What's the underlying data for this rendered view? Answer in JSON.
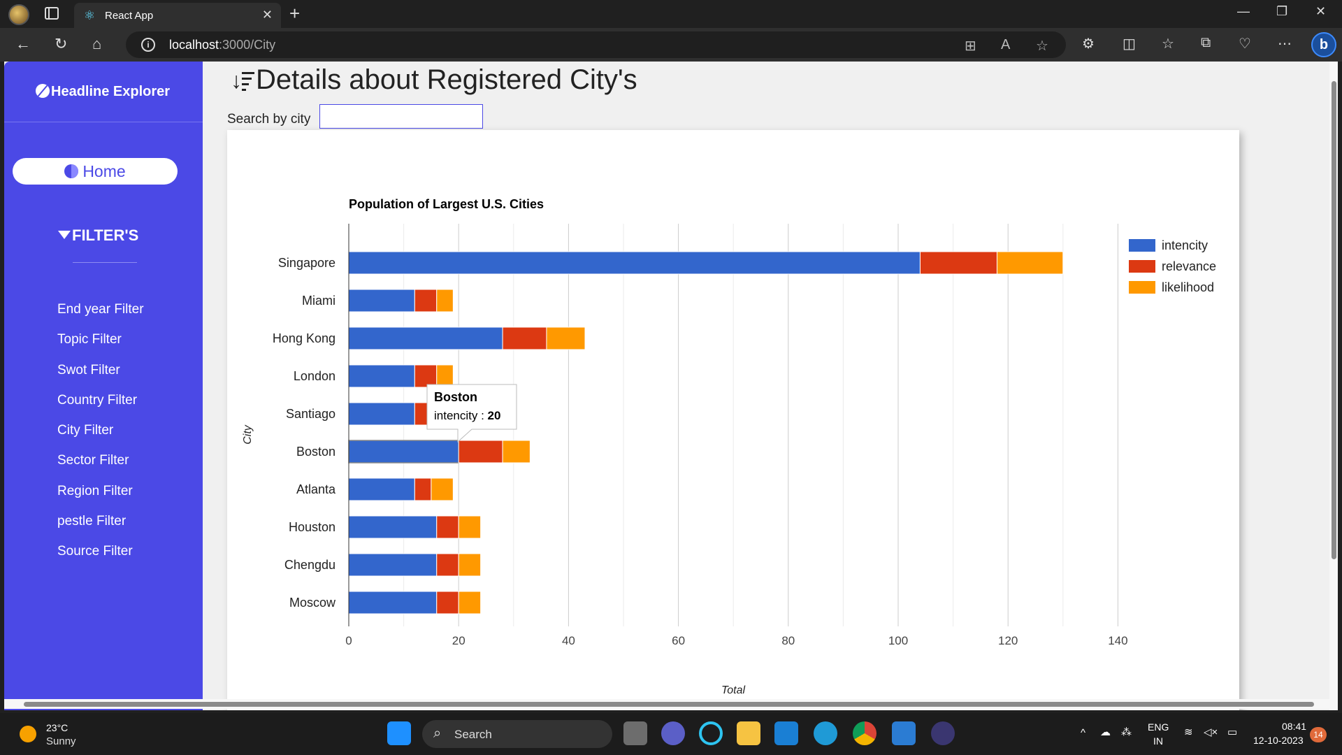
{
  "browser": {
    "tab_title": "React App",
    "url_host": "localhost",
    "url_path": ":3000/City"
  },
  "sidebar": {
    "brand": "Headline Explorer",
    "home_label": "Home",
    "filters_title": "FILTER'S",
    "items": [
      {
        "label": "End year Filter"
      },
      {
        "label": "Topic Filter"
      },
      {
        "label": "Swot Filter"
      },
      {
        "label": "Country Filter"
      },
      {
        "label": "City Filter"
      },
      {
        "label": "Sector Filter"
      },
      {
        "label": "Region Filter"
      },
      {
        "label": "pestle Filter"
      },
      {
        "label": "Source Filter"
      }
    ]
  },
  "main": {
    "title": "Details about Registered City's",
    "search_label": "Search by city",
    "search_value": ""
  },
  "tooltip": {
    "title": "Boston",
    "series": "intencity",
    "value": "20"
  },
  "chart_data": {
    "type": "bar",
    "orientation": "horizontal",
    "stacked": true,
    "title": "Population of Largest U.S. Cities",
    "xlabel": "Total",
    "ylabel": "City",
    "xlim": [
      0,
      140
    ],
    "xticks": [
      0,
      20,
      40,
      60,
      80,
      100,
      120,
      140
    ],
    "legend_position": "right",
    "categories": [
      "Singapore",
      "Miami",
      "Hong Kong",
      "London",
      "Santiago",
      "Boston",
      "Atlanta",
      "Houston",
      "Chengdu",
      "Moscow"
    ],
    "series": [
      {
        "name": "intencity",
        "color": "#3366cc",
        "values": [
          104,
          12,
          28,
          12,
          12,
          20,
          12,
          16,
          16,
          16
        ]
      },
      {
        "name": "relevance",
        "color": "#dc3912",
        "values": [
          14,
          4,
          8,
          4,
          4,
          8,
          3,
          4,
          4,
          4
        ]
      },
      {
        "name": "likelihood",
        "color": "#ff9900",
        "values": [
          12,
          3,
          7,
          3,
          3,
          5,
          4,
          4,
          4,
          4
        ]
      }
    ]
  },
  "taskbar": {
    "temp": "23°C",
    "condition": "Sunny",
    "search_label": "Search",
    "lang1": "ENG",
    "lang2": "IN",
    "time": "08:41",
    "date": "12-10-2023",
    "notifications": "14"
  }
}
